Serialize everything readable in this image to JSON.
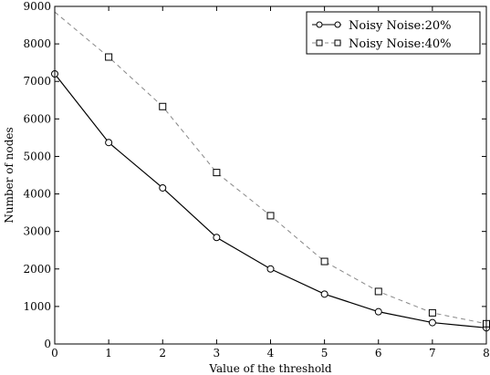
{
  "chart_data": {
    "type": "line",
    "title": "",
    "xlabel": "Value of the threshold",
    "ylabel": "Number of nodes",
    "xlim": [
      0,
      8
    ],
    "ylim": [
      0,
      9000
    ],
    "xticks": [
      0,
      1,
      2,
      3,
      4,
      5,
      6,
      7,
      8
    ],
    "yticks": [
      0,
      1000,
      2000,
      3000,
      4000,
      5000,
      6000,
      7000,
      8000,
      9000
    ],
    "grid": false,
    "legend_position": "top-right",
    "series": [
      {
        "name": "Noisy Noise:20%",
        "marker": "circle",
        "line": "solid",
        "color": "#000000",
        "x": [
          0,
          1,
          2,
          3,
          4,
          5,
          6,
          7,
          8
        ],
        "y": [
          7200,
          5370,
          4160,
          2840,
          2000,
          1330,
          860,
          570,
          430
        ]
      },
      {
        "name": "Noisy Noise:40%",
        "marker": "square",
        "line": "dashed",
        "color": "#888888",
        "x": [
          0,
          1,
          2,
          3,
          4,
          5,
          6,
          7,
          8
        ],
        "y": [
          8850,
          7650,
          6330,
          4570,
          3420,
          2200,
          1400,
          830,
          540
        ],
        "marker_x": [
          1,
          2,
          3,
          4,
          5,
          6,
          7,
          8
        ]
      }
    ]
  }
}
